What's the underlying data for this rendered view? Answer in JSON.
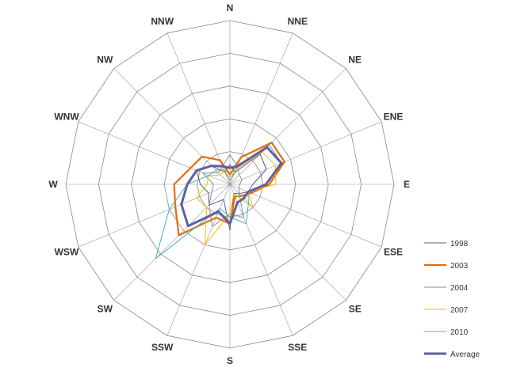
{
  "chart_data": {
    "type": "radar",
    "title": "",
    "categories": [
      "N",
      "NNE",
      "NE",
      "ENE",
      "E",
      "ESE",
      "SE",
      "SSE",
      "S",
      "SSW",
      "SW",
      "WSW",
      "W",
      "WNW",
      "NW",
      "NNW"
    ],
    "rlim": [
      0,
      5
    ],
    "rings": 5,
    "grid": true,
    "legend_position": "right",
    "series": [
      {
        "name": "1998",
        "color": "#5b5b8f",
        "width": 1.0,
        "values": [
          0.6,
          0.4,
          1.3,
          1.2,
          0.7,
          0.6,
          0.4,
          0.3,
          1.4,
          0.5,
          0.9,
          0.7,
          0.9,
          1.1,
          0.8,
          0.4
        ]
      },
      {
        "name": "2003",
        "color": "#e46c0a",
        "width": 2.2,
        "values": [
          0.3,
          0.9,
          1.8,
          1.8,
          1.2,
          0.7,
          0.5,
          0.4,
          1.2,
          1.1,
          2.2,
          1.8,
          1.7,
          1.3,
          1.2,
          0.8
        ]
      },
      {
        "name": "2004",
        "color": "#8e8e8e",
        "width": 1.0,
        "values": [
          0.9,
          0.6,
          0.4,
          0.4,
          0.3,
          0.3,
          0.4,
          1.1,
          0.9,
          1.4,
          0.9,
          0.6,
          0.5,
          0.9,
          0.5,
          0.6
        ]
      },
      {
        "name": "2007",
        "color": "#f2c200",
        "width": 1.0,
        "values": [
          0.2,
          0.5,
          1.4,
          1.5,
          1.4,
          0.6,
          1.0,
          0.3,
          0.9,
          2.0,
          1.0,
          1.1,
          0.7,
          0.7,
          0.4,
          0.5
        ]
      },
      {
        "name": "2010",
        "color": "#4bacc6",
        "width": 1.0,
        "values": [
          0.1,
          0.6,
          1.7,
          1.7,
          1.1,
          0.6,
          0.8,
          1.3,
          1.0,
          0.8,
          3.2,
          2.0,
          1.3,
          0.7,
          0.6,
          0.5
        ]
      },
      {
        "name": "Average",
        "color": "#5f5f9f",
        "width": 3.0,
        "values": [
          0.5,
          0.6,
          1.6,
          1.7,
          1.1,
          0.6,
          0.6,
          0.6,
          1.2,
          0.9,
          1.8,
          1.6,
          1.3,
          1.1,
          0.8,
          0.6
        ]
      }
    ]
  }
}
